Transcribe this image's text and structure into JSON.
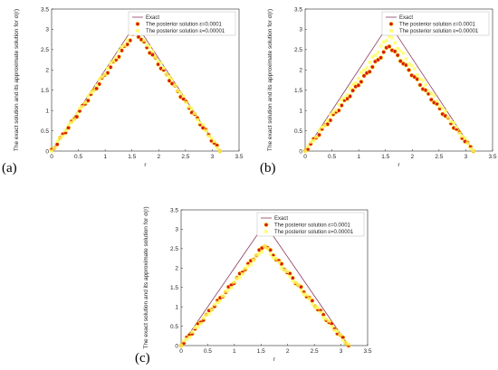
{
  "panel_labels": [
    "(a)",
    "(b)",
    "(c)"
  ],
  "colors": {
    "exact": "#8b3a62",
    "posterior_1": "#d7191c",
    "posterior_1_edge": "#ffd800",
    "posterior_2": "#ffff66",
    "axis": "#262626"
  },
  "chart_data": [
    {
      "type": "line",
      "panel": "(a)",
      "xlabel": "r",
      "ylabel": "The exact solution and its approximate solution for",
      "ylabel_symbol": "σ(r)",
      "xlim": [
        0,
        3.5
      ],
      "ylim": [
        0,
        3.5
      ],
      "xticks": [
        0,
        0.5,
        1,
        1.5,
        2,
        2.5,
        3,
        3.5
      ],
      "xtick_labels": [
        "0",
        "0.5",
        "1",
        "1.5",
        "2",
        "2.5",
        "3",
        "3.5"
      ],
      "yticks": [
        0,
        0.5,
        1,
        1.5,
        2,
        2.5,
        3,
        3.5
      ],
      "ytick_labels": [
        "0",
        "0.5",
        "1",
        "1.5",
        "2",
        "2.5",
        "3",
        "3.5"
      ],
      "legend_position": "top-right",
      "series": [
        {
          "name": "Exact",
          "style": "line",
          "x": [
            0,
            1.5708,
            3.1416
          ],
          "y": [
            0,
            3.1416,
            0
          ]
        },
        {
          "name": "The posterior solution ε=0.0001",
          "style": "marker",
          "peak": 2.95,
          "x": [],
          "y": []
        },
        {
          "name": "The posterior solution ε=0.00001",
          "style": "marker",
          "peak": 3.05,
          "x": [],
          "y": []
        }
      ]
    },
    {
      "type": "line",
      "panel": "(b)",
      "xlabel": "r",
      "ylabel": "The exact solution and its approximate solution for",
      "ylabel_symbol": "σ(r)",
      "xlim": [
        0,
        3.5
      ],
      "ylim": [
        0,
        3.5
      ],
      "xticks": [
        0,
        0.5,
        1,
        1.5,
        2,
        2.5,
        3,
        3.5
      ],
      "xtick_labels": [
        "0",
        "0.5",
        "1",
        "1.5",
        "2",
        "2.5",
        "3",
        "3.5"
      ],
      "yticks": [
        0,
        0.5,
        1,
        1.5,
        2,
        2.5,
        3,
        3.5
      ],
      "ytick_labels": [
        "0",
        "0.5",
        "1",
        "1.5",
        "2",
        "2.5",
        "3",
        "3.5"
      ],
      "legend_position": "top-right",
      "series": [
        {
          "name": "Exact",
          "style": "line",
          "x": [
            0,
            1.5708,
            3.1416
          ],
          "y": [
            0,
            3.1416,
            0
          ]
        },
        {
          "name": "The posterior solution ε=0.0001",
          "style": "marker",
          "peak": 2.6,
          "x": [],
          "y": []
        },
        {
          "name": "The posterior solution ε=0.00001",
          "style": "marker",
          "peak": 2.85,
          "x": [],
          "y": []
        }
      ]
    },
    {
      "type": "line",
      "panel": "(c)",
      "xlabel": "r",
      "ylabel": "The exact solution and its approximate solution for",
      "ylabel_symbol": "σ(r)",
      "xlim": [
        0,
        3.5
      ],
      "ylim": [
        0,
        3.5
      ],
      "xticks": [
        0,
        0.5,
        1,
        1.5,
        2,
        2.5,
        3,
        3.5
      ],
      "xtick_labels": [
        "0",
        "0.5",
        "1",
        "1.5",
        "2",
        "2.5",
        "3",
        "3.5"
      ],
      "yticks": [
        0,
        0.5,
        1,
        1.5,
        2,
        2.5,
        3,
        3.5
      ],
      "ytick_labels": [
        "0",
        "0.5",
        "1",
        "1.5",
        "2",
        "2.5",
        "3",
        "3.5"
      ],
      "legend_position": "top-right",
      "series": [
        {
          "name": "Exact",
          "style": "line",
          "x": [
            0,
            1.5708,
            3.1416
          ],
          "y": [
            0,
            3.1416,
            0
          ]
        },
        {
          "name": "The posterior solution ε=0.0001",
          "style": "marker",
          "peak": 2.6,
          "x": [],
          "y": []
        },
        {
          "name": "The posterior solution ε=0.00001",
          "style": "marker",
          "peak": 2.55,
          "x": [],
          "y": []
        }
      ]
    }
  ]
}
